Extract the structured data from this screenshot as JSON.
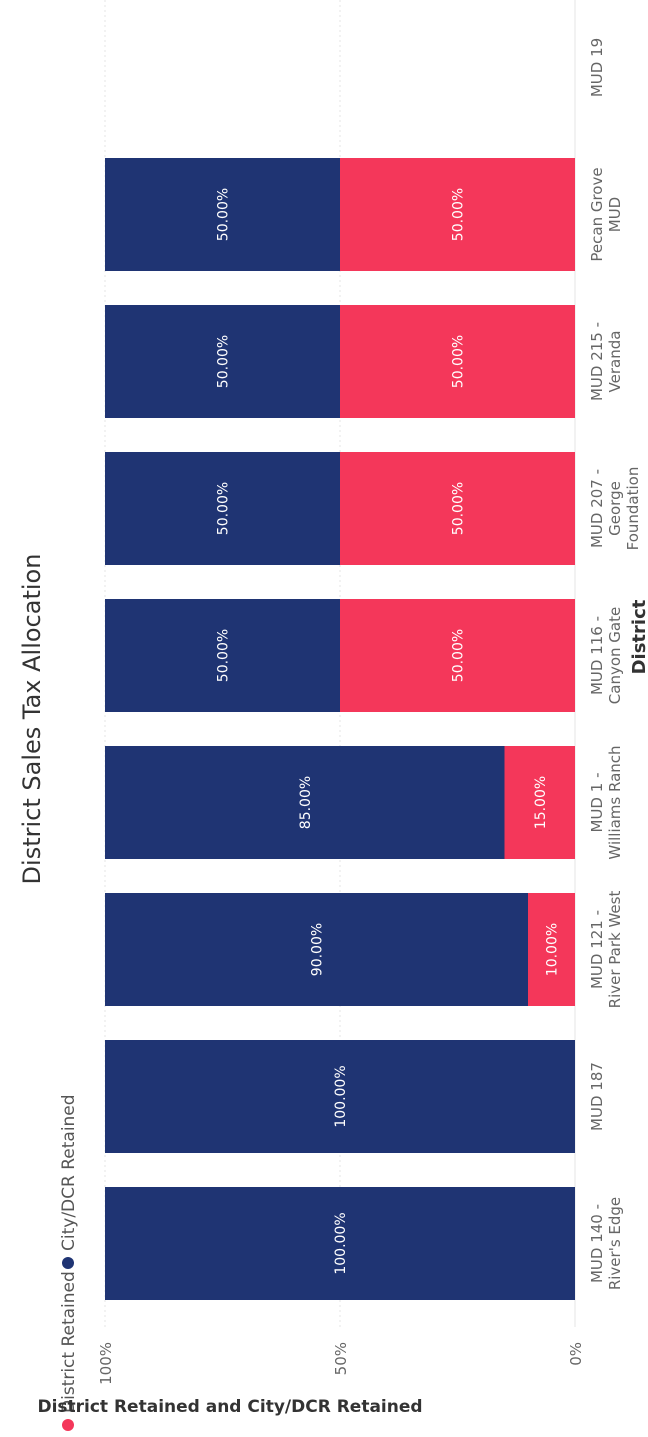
{
  "colors": {
    "city_dcr_retained": "#1F3473",
    "district_retained": "#F4375A",
    "axis_text": "#666666",
    "title_text": "#333333",
    "grid": "#e6e6e6",
    "label_on_bar": "#ffffff"
  },
  "chart_data": {
    "type": "bar",
    "stacked": "100%",
    "orientation": "rotated -90deg (page printed sideways)",
    "title": "District Sales Tax Allocation",
    "xlabel": "District",
    "ylabel": "District Retained and City/DCR Retained",
    "ylim": [
      0,
      100
    ],
    "yticks": [
      "0%",
      "50%",
      "100%"
    ],
    "legend_position": "top-left",
    "grid": true,
    "categories": [
      [
        "MUD 140 -",
        "River's Edge"
      ],
      [
        "MUD 187"
      ],
      [
        "MUD 121 -",
        "River Park West"
      ],
      [
        "MUD 1 -",
        "Williams Ranch"
      ],
      [
        "MUD 116 -",
        "Canyon Gate"
      ],
      [
        "MUD 207 -",
        "George",
        "Foundation"
      ],
      [
        "MUD 215 -",
        "Veranda"
      ],
      [
        "Pecan Grove",
        "MUD"
      ],
      [
        "MUD 19"
      ]
    ],
    "series": [
      {
        "name": "District Retained",
        "color": "#F4375A",
        "values": [
          0,
          0,
          10,
          15,
          50,
          50,
          50,
          50,
          null
        ],
        "labels": [
          "",
          "",
          "10.00%",
          "15.00%",
          "50.00%",
          "50.00%",
          "50.00%",
          "50.00%",
          ""
        ]
      },
      {
        "name": "City/DCR Retained",
        "color": "#1F3473",
        "values": [
          100,
          100,
          90,
          85,
          50,
          50,
          50,
          50,
          null
        ],
        "labels": [
          "100.00%",
          "100.00%",
          "90.00%",
          "85.00%",
          "50.00%",
          "50.00%",
          "50.00%",
          "50.00%",
          ""
        ]
      }
    ]
  }
}
